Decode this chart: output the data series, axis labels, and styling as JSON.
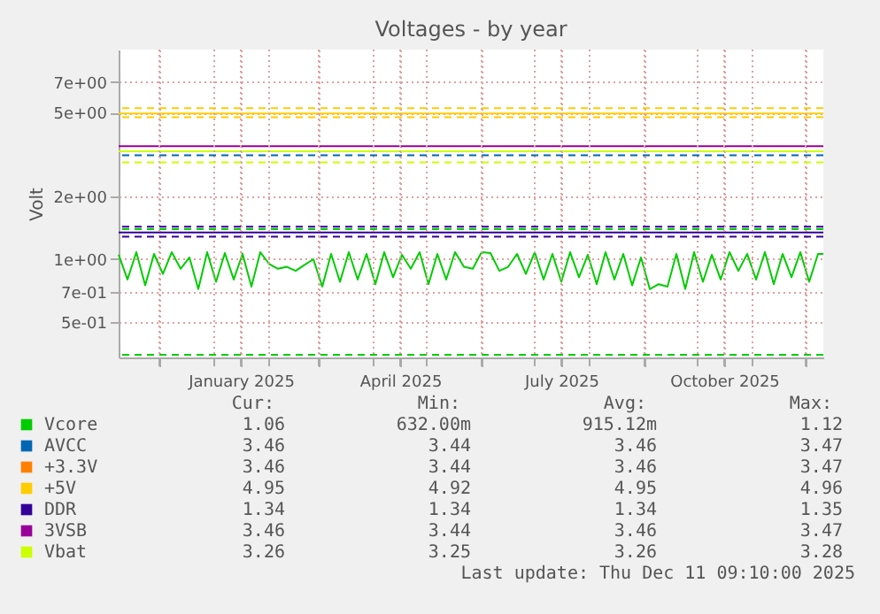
{
  "chart_data": {
    "type": "line",
    "title": "Voltages - by year",
    "ylabel": "Volt",
    "log": "y",
    "grid": true,
    "line_style": "solid",
    "marker": "none",
    "legend": "bottom",
    "xlim": [
      "2024-11-08",
      "2025-12-11"
    ],
    "xticks": [
      {
        "value": "2024-12-01",
        "label": null
      },
      {
        "value": "2025-01-01",
        "label": null
      },
      {
        "value": "2025-01-16",
        "label": "January 2025"
      },
      {
        "value": "2025-02-01",
        "label": null
      },
      {
        "value": "2025-03-01",
        "label": null
      },
      {
        "value": "2025-04-01",
        "label": null
      },
      {
        "value": "2025-04-16",
        "label": "April 2025"
      },
      {
        "value": "2025-05-01",
        "label": null
      },
      {
        "value": "2025-06-01",
        "label": null
      },
      {
        "value": "2025-07-01",
        "label": null
      },
      {
        "value": "2025-07-16",
        "label": "July 2025"
      },
      {
        "value": "2025-08-01",
        "label": null
      },
      {
        "value": "2025-09-01",
        "label": null
      },
      {
        "value": "2025-10-01",
        "label": null
      },
      {
        "value": "2025-10-16",
        "label": "October 2025"
      },
      {
        "value": "2025-11-01",
        "label": null
      },
      {
        "value": "2025-12-01",
        "label": null
      }
    ],
    "ylim": [
      0.34,
      10
    ],
    "yticks": [
      {
        "value": 0.5,
        "label": "5e-01"
      },
      {
        "value": 0.7,
        "label": "7e-01"
      },
      {
        "value": 1,
        "label": "1e+00"
      },
      {
        "value": 2,
        "label": "2e+00"
      },
      {
        "value": 5,
        "label": "5e+00"
      },
      {
        "value": 7,
        "label": "7e+00"
      }
    ],
    "series": [
      {
        "name": "Vcore",
        "color": "#00cc00",
        "x": [
          "2024-11-08",
          "2024-11-13",
          "2024-11-18",
          "2024-11-23",
          "2024-11-28",
          "2024-12-03",
          "2024-12-08",
          "2024-12-13",
          "2024-12-18",
          "2024-12-23",
          "2024-12-28",
          "2025-01-02",
          "2025-01-07",
          "2025-01-12",
          "2025-01-17",
          "2025-01-22",
          "2025-01-27",
          "2025-02-01",
          "2025-02-06",
          "2025-02-11",
          "2025-02-16",
          "2025-02-21",
          "2025-02-26",
          "2025-03-03",
          "2025-03-08",
          "2025-03-13",
          "2025-03-18",
          "2025-03-23",
          "2025-03-28",
          "2025-04-02",
          "2025-04-07",
          "2025-04-12",
          "2025-04-17",
          "2025-04-22",
          "2025-04-27",
          "2025-05-02",
          "2025-05-07",
          "2025-05-12",
          "2025-05-17",
          "2025-05-22",
          "2025-05-27",
          "2025-06-01",
          "2025-06-06",
          "2025-06-11",
          "2025-06-16",
          "2025-06-21",
          "2025-06-26",
          "2025-07-01",
          "2025-07-06",
          "2025-07-11",
          "2025-07-16",
          "2025-07-21",
          "2025-07-26",
          "2025-07-31",
          "2025-08-05",
          "2025-08-10",
          "2025-08-15",
          "2025-08-20",
          "2025-08-25",
          "2025-08-30",
          "2025-09-04",
          "2025-09-09",
          "2025-09-14",
          "2025-09-19",
          "2025-09-24",
          "2025-09-29",
          "2025-10-04",
          "2025-10-09",
          "2025-10-14",
          "2025-10-19",
          "2025-10-24",
          "2025-10-29",
          "2025-11-03",
          "2025-11-08",
          "2025-11-13",
          "2025-11-18",
          "2025-11-23",
          "2025-11-28",
          "2025-12-03",
          "2025-12-08",
          "2025-12-11"
        ],
        "values": [
          1.05,
          0.8,
          1.08,
          0.75,
          1.06,
          0.85,
          1.08,
          0.9,
          1.02,
          0.72,
          1.08,
          0.78,
          1.07,
          0.8,
          1.06,
          0.74,
          1.08,
          0.95,
          0.9,
          0.92,
          0.88,
          0.94,
          1.0,
          0.74,
          1.06,
          0.78,
          1.08,
          0.8,
          1.06,
          0.76,
          1.08,
          0.82,
          1.05,
          0.9,
          1.08,
          0.76,
          1.06,
          0.8,
          1.08,
          0.92,
          0.9,
          1.08,
          1.07,
          0.88,
          0.92,
          1.06,
          0.85,
          1.08,
          0.8,
          1.06,
          0.78,
          1.08,
          0.82,
          1.05,
          0.76,
          1.08,
          0.8,
          1.06,
          0.75,
          1.02,
          0.72,
          0.76,
          0.74,
          1.06,
          0.72,
          1.08,
          0.78,
          1.05,
          0.8,
          1.08,
          0.88,
          1.06,
          0.8,
          1.08,
          0.76,
          1.06,
          0.82,
          1.08,
          0.78,
          1.06,
          1.06
        ]
      },
      {
        "name": "AVCC",
        "color": "#0066b3",
        "values": [
          null
        ]
      },
      {
        "name": "+3.3V",
        "color": "#ff8000",
        "values": [
          null
        ]
      },
      {
        "name": "+5V",
        "color": "#ffcc00",
        "x": [
          "2024-11-08",
          "2025-12-11"
        ],
        "values": [
          4.95,
          4.95
        ]
      },
      {
        "name": "DDR",
        "color": "#330099",
        "x": [
          "2024-11-08",
          "2025-12-11"
        ],
        "values": [
          1.34,
          1.34
        ]
      },
      {
        "name": "3VSB",
        "color": "#990099",
        "x": [
          "2024-11-08",
          "2025-12-11"
        ],
        "values": [
          3.46,
          3.46
        ]
      },
      {
        "name": "Vbat",
        "color": "#ccff00",
        "x": [
          "2024-11-08",
          "2025-12-11"
        ],
        "values": [
          3.27,
          3.27
        ]
      }
    ],
    "ref_lines": [
      {
        "axis": "y",
        "value": 5.25,
        "color": "#ffcc00",
        "line_style": "dashed"
      },
      {
        "axis": "y",
        "value": 4.75,
        "color": "#ffcc00",
        "line_style": "dashed"
      },
      {
        "axis": "y",
        "value": 3.135,
        "color": "#0066b3",
        "line_style": "dashed"
      },
      {
        "axis": "y",
        "value": 2.9,
        "color": "#ccff00",
        "line_style": "dashed"
      },
      {
        "axis": "y",
        "value": 1.43,
        "color": "#330099",
        "line_style": "dashed"
      },
      {
        "axis": "y",
        "value": 1.39,
        "color": "#00cc00",
        "line_style": "dashed"
      },
      {
        "axis": "y",
        "value": 1.28,
        "color": "#330099",
        "line_style": "dashed"
      },
      {
        "axis": "y",
        "value": 0.35,
        "color": "#00cc00",
        "line_style": "dashed"
      }
    ],
    "annotations": [
      "Cur:",
      "Min:",
      "Avg:",
      "Max:",
      "1.06",
      "632.00m",
      "915.12m",
      "1.12",
      "3.46",
      "3.44",
      "3.46",
      "3.47",
      "3.46",
      "3.44",
      "3.46",
      "3.47",
      "4.95",
      "4.92",
      "4.95",
      "4.96",
      "1.34",
      "1.34",
      "1.34",
      "1.35",
      "3.46",
      "3.44",
      "3.46",
      "3.47",
      "3.26",
      "3.25",
      "3.26",
      "3.28",
      "Last update: Thu Dec 11 09:10:00 2025"
    ]
  }
}
